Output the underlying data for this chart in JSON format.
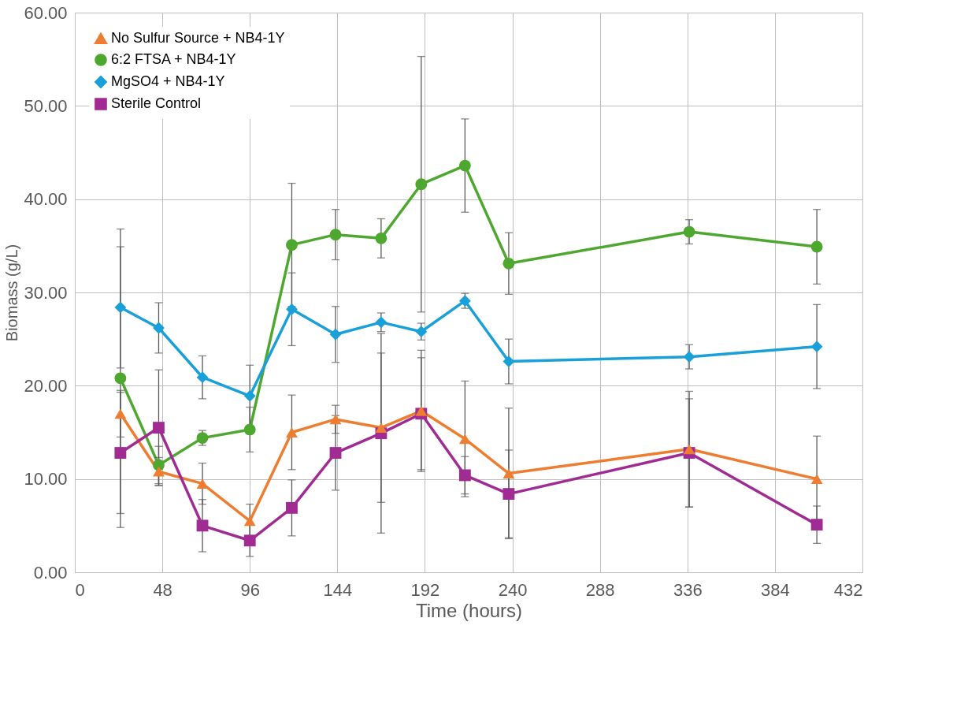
{
  "chart_data": {
    "type": "line",
    "xlabel": "Time (hours)",
    "ylabel": "Biomass (g/L)",
    "x": [
      25,
      46,
      70,
      96,
      119,
      143,
      168,
      190,
      214,
      238,
      337,
      407
    ],
    "xlim": [
      0,
      432
    ],
    "xticks": [
      0,
      48,
      96,
      144,
      192,
      240,
      288,
      336,
      384,
      432
    ],
    "ylim": [
      0,
      60
    ],
    "yticks": [
      {
        "value": 0,
        "label": "0.00"
      },
      {
        "value": 10,
        "label": "10.00"
      },
      {
        "value": 20,
        "label": "20.00"
      },
      {
        "value": 30,
        "label": "30.00"
      },
      {
        "value": 40,
        "label": "40.00"
      },
      {
        "value": 50,
        "label": "50.00"
      },
      {
        "value": 60,
        "label": "60.00"
      }
    ],
    "grid": true,
    "legend": "top left",
    "line_style": "solid",
    "series": [
      {
        "name": "No Sulfur Source + NB4-1Y",
        "color": "#ed7d31",
        "marker": "triangle",
        "values": [
          17.0,
          10.8,
          9.5,
          5.5,
          15.0,
          16.4,
          15.5,
          17.3,
          14.3,
          10.6,
          13.2,
          10.0
        ],
        "errors": [
          2.5,
          1.5,
          2.2,
          1.8,
          4.0,
          1.5,
          8.0,
          6.5,
          6.2,
          7.0,
          6.2,
          4.6
        ]
      },
      {
        "name": "6:2 FTSA + NB4-1Y",
        "color": "#4ea72e",
        "marker": "circle",
        "values": [
          20.8,
          11.5,
          14.4,
          15.3,
          35.1,
          36.2,
          35.8,
          41.6,
          43.6,
          33.1,
          36.5,
          34.9
        ],
        "errors": [
          16.0,
          2.0,
          0.8,
          2.4,
          6.6,
          2.7,
          2.1,
          13.7,
          5.0,
          3.3,
          1.3,
          4.0
        ]
      },
      {
        "name": "MgSO4 + NB4-1Y",
        "color": "#1aa0d8",
        "marker": "diamond",
        "values": [
          28.4,
          26.2,
          20.9,
          18.9,
          28.2,
          25.5,
          26.8,
          25.8,
          29.1,
          22.6,
          23.1,
          24.2
        ],
        "errors": [
          6.5,
          2.7,
          2.3,
          3.3,
          3.9,
          3.0,
          1.0,
          0.9,
          0.8,
          2.4,
          1.3,
          4.5
        ]
      },
      {
        "name": "Sterile Control",
        "color": "#a02b93",
        "marker": "square",
        "values": [
          12.8,
          15.5,
          5.0,
          3.4,
          6.9,
          12.8,
          14.9,
          17.0,
          10.4,
          8.4,
          12.8,
          5.1
        ],
        "errors": [
          6.5,
          6.2,
          2.8,
          1.7,
          3.0,
          4.0,
          10.7,
          6.0,
          2.0,
          4.7,
          5.8,
          2.0
        ]
      }
    ]
  }
}
